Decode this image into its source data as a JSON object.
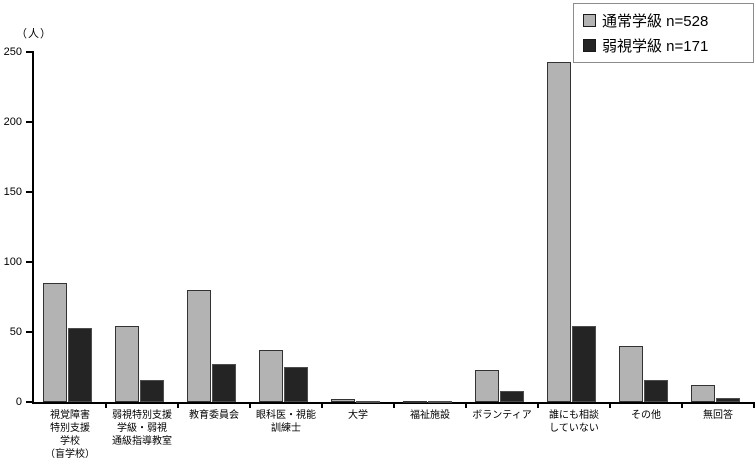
{
  "chart_data": {
    "type": "bar",
    "title": "",
    "ylabel": "（人）",
    "xlabel": "",
    "ylim": [
      0,
      250
    ],
    "yticks": [
      0,
      50,
      100,
      150,
      200,
      250
    ],
    "grid": false,
    "legend_position": "top-right",
    "categories": [
      "視覚障害\n特別支援\n学校\n（盲学校）",
      "弱視特別支援\n学級・弱視\n通級指導教室",
      "教育委員会",
      "眼科医・視能\n訓練士",
      "大学",
      "福祉施設",
      "ボランティア",
      "誰にも相談\nしていない",
      "その他",
      "無回答"
    ],
    "series": [
      {
        "name": "通常学級",
        "legend": "通常学級  n=528",
        "n": 528,
        "color": "#b3b3b3",
        "border_color": "#333333",
        "values": [
          85,
          54,
          80,
          37,
          2,
          1,
          23,
          243,
          40,
          12
        ]
      },
      {
        "name": "弱視学級",
        "legend": "弱視学級  n=171",
        "n": 171,
        "color": "#242424",
        "border_color": "#4d4d4d",
        "values": [
          53,
          16,
          27,
          25,
          1,
          1,
          8,
          54,
          16,
          3
        ]
      }
    ]
  }
}
